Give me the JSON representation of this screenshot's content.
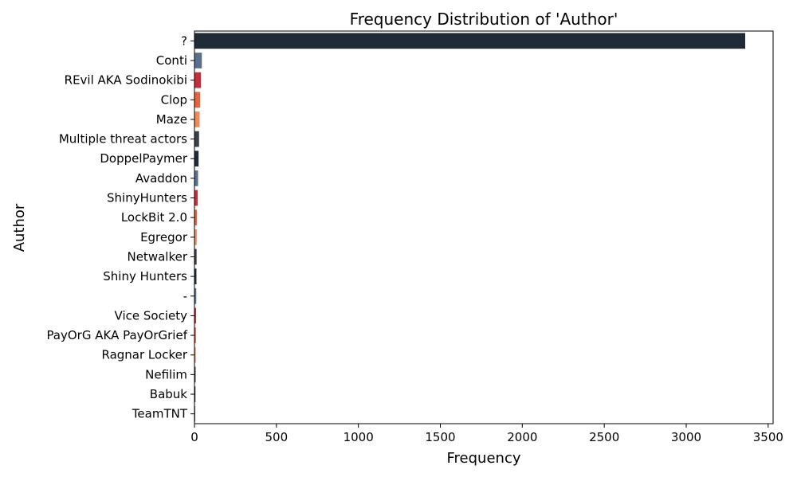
{
  "chart_data": {
    "type": "bar",
    "orientation": "horizontal",
    "title": "Frequency Distribution of 'Author'",
    "xlabel": "Frequency",
    "ylabel": "Author",
    "xlim": [
      0,
      3530
    ],
    "xticks": [
      0,
      500,
      1000,
      1500,
      2000,
      2500,
      3000,
      3500
    ],
    "grid": false,
    "categories": [
      "?",
      "Conti",
      "REvil AKA Sodinokibi",
      "Clop",
      "Maze",
      "Multiple threat actors",
      "DoppelPaymer",
      "Avaddon",
      "ShinyHunters",
      "LockBit 2.0",
      "Egregor",
      "Netwalker",
      "Shiny Hunters",
      "-",
      "Vice Society",
      "PayOrG AKA PayOrGrief",
      "Ragnar Locker",
      "Nefilim",
      "Babuk",
      "TeamTNT"
    ],
    "values": [
      3360,
      45,
      40,
      35,
      32,
      28,
      25,
      22,
      20,
      15,
      14,
      13,
      12,
      11,
      10,
      9,
      8,
      7,
      6,
      5
    ],
    "colors": [
      "#202b38",
      "#5a6f8c",
      "#c0303b",
      "#e8633f",
      "#f28b5a",
      "#3a3f4b",
      "#1e2b3a",
      "#59708f",
      "#c4313a",
      "#e8623e",
      "#f2905e",
      "#3b3e48",
      "#1f2c3a",
      "#5c7090",
      "#c3323a",
      "#e6643f",
      "#f08c5a",
      "#3a3d47",
      "#202c3a",
      "#5b6e8e"
    ]
  }
}
